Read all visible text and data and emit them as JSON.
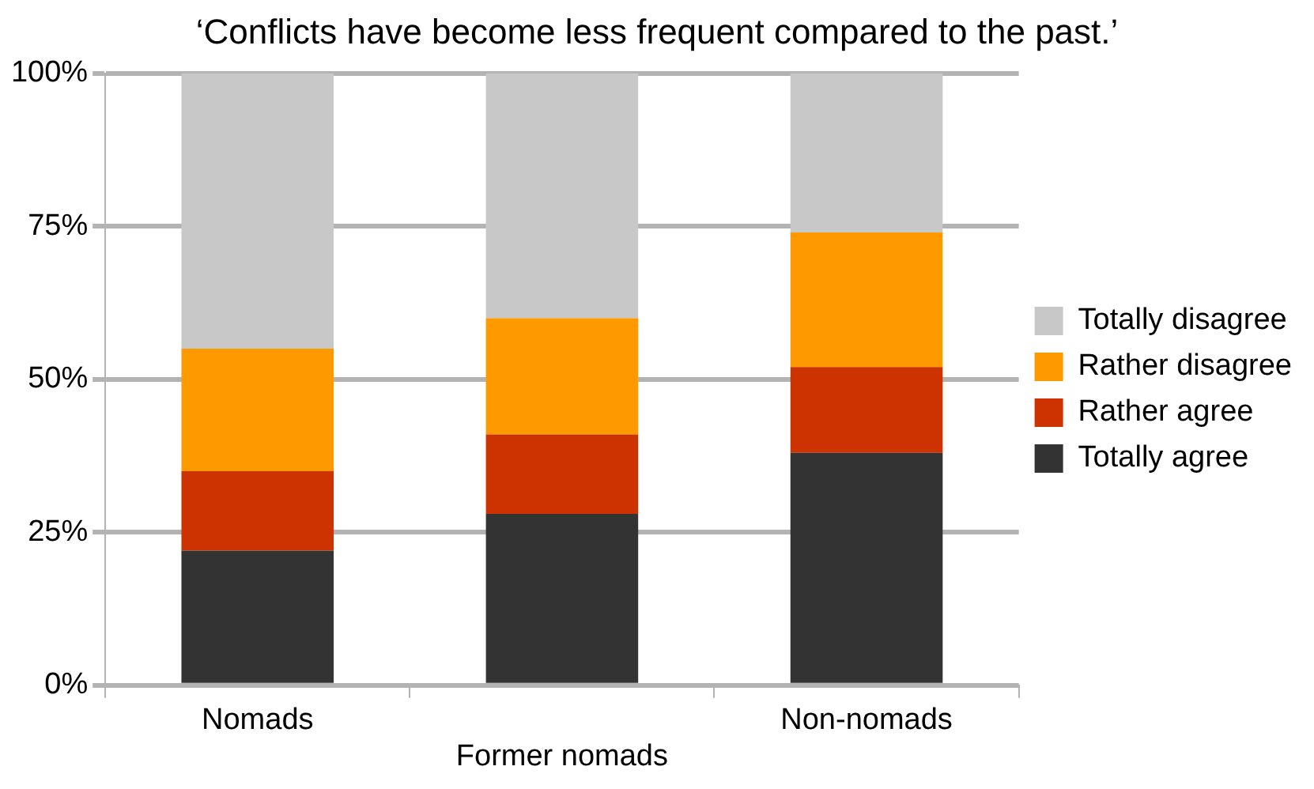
{
  "chart_data": {
    "type": "bar",
    "title": "‘Conflicts have become less frequent compared to the past.’",
    "categories": [
      "Nomads",
      "Former nomads",
      "Non-nomads"
    ],
    "stacked": true,
    "series": [
      {
        "name": "Totally agree",
        "color": "#333333",
        "values": [
          22,
          28,
          38
        ]
      },
      {
        "name": "Rather agree",
        "color": "#cc3300",
        "values": [
          13,
          13,
          14
        ]
      },
      {
        "name": "Rather disagree",
        "color": "#ff9900",
        "values": [
          20,
          19,
          22
        ]
      },
      {
        "name": "Totally disagree",
        "color": "#c8c8c8",
        "values": [
          45,
          40,
          26
        ]
      }
    ],
    "ylim": [
      0,
      100
    ],
    "yticks": [
      {
        "value": 0,
        "label": "0%"
      },
      {
        "value": 25,
        "label": "25%"
      },
      {
        "value": 50,
        "label": "50%"
      },
      {
        "value": 75,
        "label": "75%"
      },
      {
        "value": 100,
        "label": "100%"
      }
    ],
    "grid": "y",
    "legend": "right"
  }
}
